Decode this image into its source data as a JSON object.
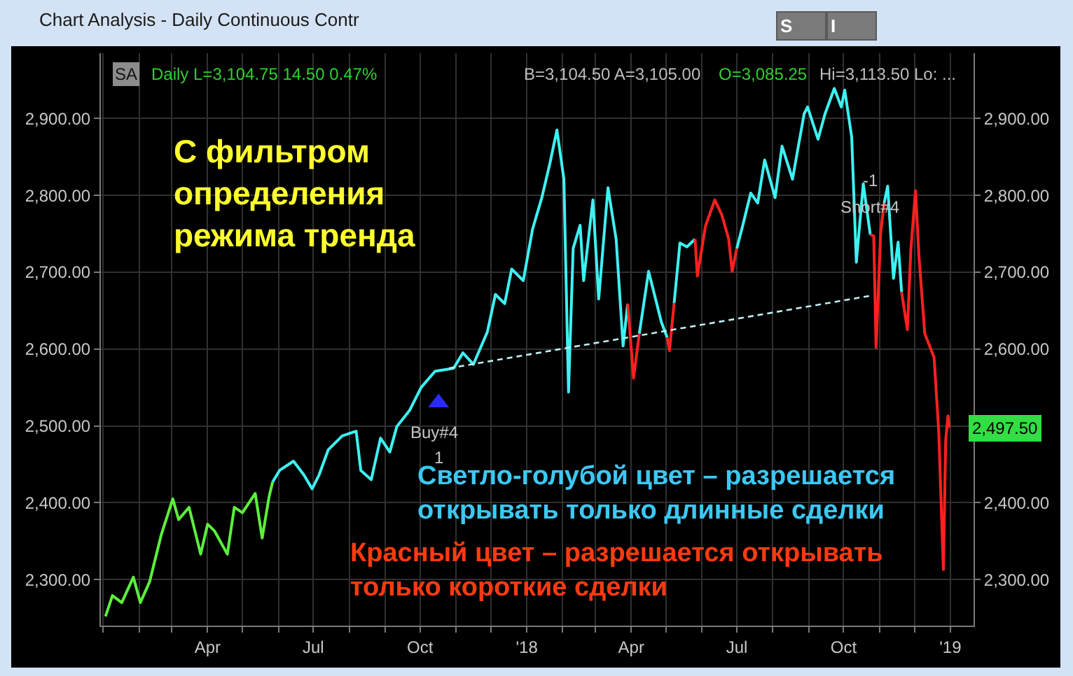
{
  "chart_data": {
    "type": "line",
    "title": "Chart Analysis - Daily Continuous Contr",
    "annotations": [
      "С фильтром\nопределения\nрежима тренда",
      "Светло-голубой цвет – разрешается\nоткрывать только длинные сделки",
      "Красный цвет – разрешается открывать\nтолько короткие сделки",
      "SA",
      "Daily L=3,104.75 14.50 0.47%",
      "B=3,104.50 A=3,105.00",
      "O=3,085.25",
      "Hi=3,113.50 Lo: ...",
      "Buy#4",
      "1",
      "S",
      "I",
      {
        "text": "-1",
        "x": "2018-10-24",
        "y": 2819
      },
      {
        "text": "Short#4",
        "x": "2018-10-24",
        "y": 2785
      },
      {
        "text": "2,497.50",
        "x": "2018-12-31",
        "y": 2497.5
      }
    ],
    "series": [
      {
        "color": "#5cf03c",
        "x": [
          "2017-01-03",
          "2017-01-09",
          "2017-01-17",
          "2017-01-27",
          "2017-02-02",
          "2017-02-10",
          "2017-02-20",
          "2017-03-02",
          "2017-03-07",
          "2017-03-16",
          "2017-03-26",
          "2017-04-01",
          "2017-04-07",
          "2017-04-18",
          "2017-04-24",
          "2017-05-01",
          "2017-05-12",
          "2017-05-18",
          "2017-05-24",
          "2017-05-27"
        ],
        "values": [
          2252,
          2279,
          2270,
          2303,
          2270,
          2297,
          2358,
          2405,
          2378,
          2394,
          2333,
          2372,
          2363,
          2333,
          2394,
          2387,
          2412,
          2354,
          2408,
          2427
        ]
      },
      {
        "color": "#3ef2f2",
        "x": [
          "2017-05-27",
          "2017-06-02",
          "2017-06-14",
          "2017-06-23",
          "2017-06-30",
          "2017-07-06",
          "2017-07-14",
          "2017-07-26",
          "2017-08-07",
          "2017-08-11",
          "2017-08-20",
          "2017-08-28",
          "2017-09-05",
          "2017-09-11",
          "2017-09-22",
          "2017-10-02",
          "2017-10-14",
          "2017-10-30",
          "2017-11-07",
          "2017-11-16",
          "2017-11-28",
          "2017-12-05",
          "2017-12-13",
          "2017-12-19",
          "2017-12-29",
          "2018-01-06",
          "2018-01-14",
          "2018-01-21",
          "2018-01-27",
          "2018-02-02",
          "2018-02-06",
          "2018-02-10",
          "2018-02-16",
          "2018-02-19",
          "2018-02-27",
          "2018-03-04",
          "2018-03-12",
          "2018-03-19",
          "2018-03-25",
          "2018-03-29"
        ],
        "values": [
          2427,
          2442,
          2454,
          2436,
          2418,
          2436,
          2469,
          2487,
          2493,
          2442,
          2430,
          2484,
          2466,
          2499,
          2520,
          2550,
          2571,
          2575,
          2595,
          2580,
          2622,
          2671,
          2659,
          2704,
          2689,
          2756,
          2797,
          2842,
          2885,
          2821,
          2544,
          2731,
          2761,
          2689,
          2794,
          2665,
          2810,
          2743,
          2604,
          2659
        ]
      },
      {
        "color": "#ff2020",
        "x": [
          "2018-03-29",
          "2018-04-03",
          "2018-04-08"
        ],
        "values": [
          2659,
          2562,
          2620
        ]
      },
      {
        "color": "#3ef2f2",
        "x": [
          "2018-04-08",
          "2018-04-16",
          "2018-04-27",
          "2018-05-02"
        ],
        "values": [
          2620,
          2701,
          2635,
          2615
        ]
      },
      {
        "color": "#ff2020",
        "x": [
          "2018-05-02",
          "2018-05-04",
          "2018-05-08"
        ],
        "values": [
          2615,
          2598,
          2660
        ]
      },
      {
        "color": "#3ef2f2",
        "x": [
          "2018-05-08",
          "2018-05-13",
          "2018-05-19",
          "2018-05-26"
        ],
        "values": [
          2660,
          2738,
          2733,
          2743
        ]
      },
      {
        "color": "#ff2020",
        "x": [
          "2018-05-26",
          "2018-05-28",
          "2018-06-04",
          "2018-06-12",
          "2018-06-18",
          "2018-06-24",
          "2018-06-27",
          "2018-07-01"
        ],
        "values": [
          2743,
          2695,
          2760,
          2794,
          2775,
          2743,
          2701,
          2731
        ]
      },
      {
        "color": "#3ef2f2",
        "x": [
          "2018-07-01",
          "2018-07-06",
          "2018-07-13",
          "2018-07-19",
          "2018-07-25",
          "2018-08-03",
          "2018-08-09",
          "2018-08-18",
          "2018-08-28",
          "2018-08-31",
          "2018-09-09",
          "2018-09-15",
          "2018-09-23",
          "2018-09-29",
          "2018-10-02",
          "2018-10-08",
          "2018-10-12",
          "2018-10-18",
          "2018-10-24"
        ],
        "values": [
          2731,
          2760,
          2803,
          2790,
          2846,
          2797,
          2864,
          2821,
          2906,
          2915,
          2873,
          2906,
          2939,
          2915,
          2937,
          2876,
          2713,
          2815,
          2749
        ]
      },
      {
        "color": "#ff2020",
        "x": [
          "2018-10-24",
          "2018-10-27",
          "2018-10-29",
          "2018-11-02",
          "2018-11-05"
        ],
        "values": [
          2749,
          2747,
          2602,
          2752,
          2790
        ]
      },
      {
        "color": "#3ef2f2",
        "x": [
          "2018-11-05",
          "2018-11-08",
          "2018-11-13",
          "2018-11-17",
          "2018-11-20"
        ],
        "values": [
          2790,
          2812,
          2692,
          2739,
          2674
        ]
      },
      {
        "color": "#ff2020",
        "x": [
          "2018-11-20",
          "2018-11-25",
          "2018-11-28",
          "2018-12-02",
          "2018-12-05",
          "2018-12-10",
          "2018-12-18",
          "2018-12-22",
          "2018-12-26",
          "2018-12-28",
          "2018-12-30",
          "2018-12-31"
        ],
        "values": [
          2674,
          2625,
          2730,
          2806,
          2720,
          2620,
          2589,
          2493,
          2313,
          2481,
          2513,
          2497.5
        ]
      },
      {
        "type": "line",
        "line_style": "dashed",
        "color": "#bfeff0",
        "x": [
          "2017-10-26",
          "2018-10-23"
        ],
        "values": [
          2575,
          2669
        ]
      },
      {
        "type": "scatter",
        "marker": "triangle",
        "color": "#2a2aff",
        "x": [
          "2017-10-17"
        ],
        "values": [
          2530
        ]
      }
    ],
    "xlim": [
      "2016-12-30",
      "2019-01-21"
    ],
    "xticks": [
      {
        "value": "2017-01-01",
        "label": null
      },
      {
        "value": "2017-02-01",
        "label": null
      },
      {
        "value": "2017-03-01",
        "label": null
      },
      {
        "value": "2017-04-01",
        "label": "Apr"
      },
      {
        "value": "2017-05-01",
        "label": null
      },
      {
        "value": "2017-06-01",
        "label": null
      },
      {
        "value": "2017-07-01",
        "label": "Jul"
      },
      {
        "value": "2017-08-01",
        "label": null
      },
      {
        "value": "2017-09-01",
        "label": null
      },
      {
        "value": "2017-10-01",
        "label": "Oct"
      },
      {
        "value": "2017-11-01",
        "label": null
      },
      {
        "value": "2017-12-01",
        "label": null
      },
      {
        "value": "2018-01-01",
        "label": "'18"
      },
      {
        "value": "2018-02-01",
        "label": null
      },
      {
        "value": "2018-03-01",
        "label": null
      },
      {
        "value": "2018-04-01",
        "label": "Apr"
      },
      {
        "value": "2018-05-01",
        "label": null
      },
      {
        "value": "2018-06-01",
        "label": null
      },
      {
        "value": "2018-07-01",
        "label": "Jul"
      },
      {
        "value": "2018-08-01",
        "label": null
      },
      {
        "value": "2018-09-01",
        "label": null
      },
      {
        "value": "2018-10-01",
        "label": "Oct"
      },
      {
        "value": "2018-11-01",
        "label": null
      },
      {
        "value": "2018-12-01",
        "label": null
      },
      {
        "value": "2019-01-01",
        "label": "'19"
      }
    ],
    "ylim": [
      2240,
      2985
    ],
    "yticks": [
      {
        "value": 2300,
        "label": "2,300.00"
      },
      {
        "value": 2400,
        "label": "2,400.00"
      },
      {
        "value": 2500,
        "label": "2,500.00"
      },
      {
        "value": 2600,
        "label": "2,600.00"
      },
      {
        "value": 2700,
        "label": "2,700.00"
      },
      {
        "value": 2800,
        "label": "2,800.00"
      },
      {
        "value": 2900,
        "label": "2,900.00"
      }
    ],
    "y2lim": [
      2240,
      2985
    ],
    "y2ticks": [
      {
        "value": 2300,
        "label": "2,300.00"
      },
      {
        "value": 2400,
        "label": "2,400.00"
      },
      {
        "value": 2500,
        "label": null
      },
      {
        "value": 2600,
        "label": "2,600.00"
      },
      {
        "value": 2700,
        "label": "2,700.00"
      },
      {
        "value": 2800,
        "label": "2,800.00"
      },
      {
        "value": 2900,
        "label": "2,900.00"
      }
    ],
    "grid": true
  }
}
